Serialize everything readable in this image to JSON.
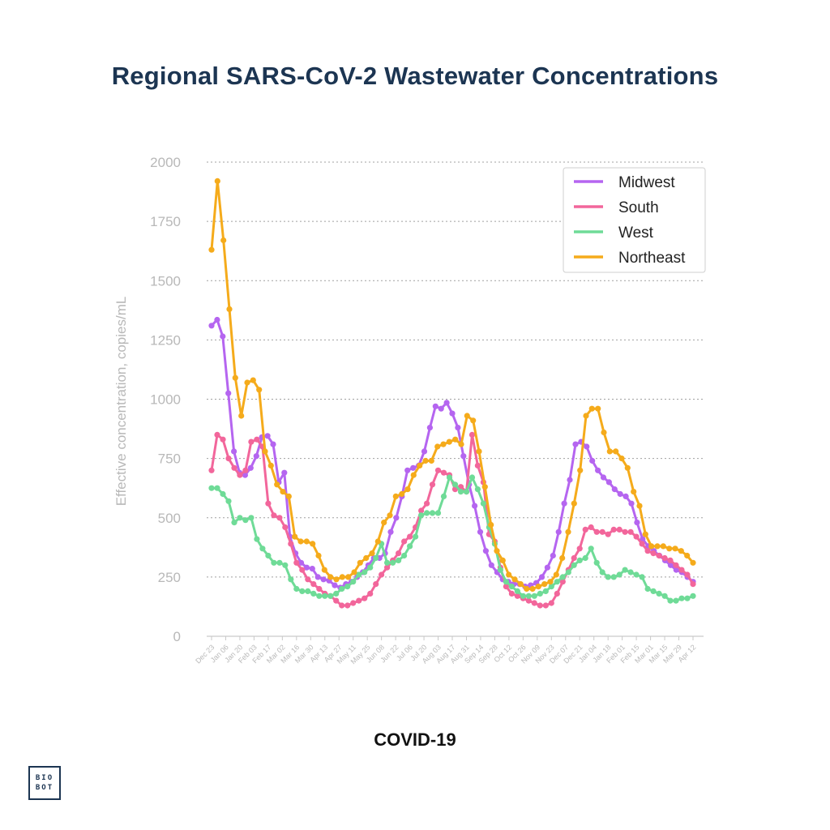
{
  "title": "Regional SARS-CoV-2 Wastewater Concentrations",
  "footer": "COVID-19",
  "logo": {
    "line1": "BIO",
    "line2": "BOT"
  },
  "chart_data": {
    "type": "line",
    "title": "Regional SARS-CoV-2 Wastewater Concentrations",
    "xlabel": "",
    "ylabel": "Effective concentration, copies/mL",
    "ylim": [
      0,
      2000
    ],
    "yticks": [
      0,
      250,
      500,
      750,
      1000,
      1250,
      1500,
      1750,
      2000
    ],
    "grid": "horizontal dotted",
    "legend": "top-right",
    "x_tick_labels": [
      "Dec 23",
      "Jan 06",
      "Jan 20",
      "Feb 03",
      "Feb 17",
      "Mar 02",
      "Mar 16",
      "Mar 30",
      "Apr 13",
      "Apr 27",
      "May 11",
      "May 25",
      "Jun 08",
      "Jun 22",
      "Jul 06",
      "Jul 20",
      "Aug 03",
      "Aug 17",
      "Aug 31",
      "Sep 14",
      "Sep 28",
      "Oct 12",
      "Oct 26",
      "Nov 09",
      "Nov 23",
      "Dec 07",
      "Dec 21",
      "Jan 04",
      "Jan 18",
      "Feb 01",
      "Feb 15",
      "Mar 01",
      "Mar 15",
      "Mar 29",
      "Apr 12"
    ],
    "series": [
      {
        "name": "Midwest",
        "color": "#b565f0",
        "values": [
          1310,
          1335,
          1265,
          1025,
          780,
          690,
          680,
          710,
          760,
          840,
          845,
          810,
          650,
          690,
          420,
          350,
          310,
          290,
          285,
          250,
          240,
          235,
          215,
          205,
          220,
          230,
          250,
          270,
          300,
          330,
          330,
          350,
          440,
          500,
          590,
          700,
          710,
          720,
          780,
          880,
          970,
          960,
          985,
          940,
          880,
          760,
          640,
          550,
          440,
          360,
          300,
          270,
          240,
          230,
          220,
          220,
          210,
          215,
          225,
          250,
          290,
          340,
          440,
          560,
          660,
          810,
          820,
          800,
          740,
          700,
          670,
          650,
          620,
          600,
          590,
          560,
          480,
          410,
          380,
          360,
          340,
          320,
          300,
          280,
          270,
          250,
          230
        ]
      },
      {
        "name": "South",
        "color": "#f2669b",
        "values": [
          700,
          850,
          830,
          750,
          710,
          680,
          700,
          820,
          830,
          800,
          560,
          510,
          500,
          460,
          390,
          310,
          280,
          240,
          220,
          200,
          180,
          170,
          150,
          130,
          130,
          140,
          150,
          160,
          180,
          220,
          260,
          290,
          320,
          350,
          400,
          420,
          460,
          530,
          560,
          640,
          700,
          690,
          680,
          620,
          630,
          610,
          850,
          720,
          650,
          430,
          400,
          290,
          210,
          180,
          170,
          160,
          150,
          140,
          130,
          130,
          140,
          180,
          230,
          280,
          330,
          370,
          450,
          460,
          440,
          440,
          430,
          450,
          450,
          440,
          440,
          420,
          390,
          360,
          350,
          340,
          330,
          320,
          300,
          280,
          260,
          220
        ]
      },
      {
        "name": "West",
        "color": "#6fdb97",
        "values": [
          625,
          625,
          600,
          570,
          480,
          500,
          490,
          500,
          410,
          370,
          340,
          310,
          310,
          300,
          240,
          200,
          190,
          190,
          180,
          170,
          170,
          170,
          180,
          200,
          210,
          230,
          260,
          270,
          290,
          330,
          390,
          310,
          310,
          320,
          340,
          380,
          420,
          510,
          520,
          520,
          520,
          590,
          670,
          640,
          610,
          610,
          670,
          620,
          560,
          460,
          390,
          280,
          230,
          210,
          190,
          170,
          170,
          170,
          180,
          190,
          210,
          230,
          250,
          270,
          300,
          320,
          330,
          370,
          310,
          270,
          250,
          250,
          260,
          280,
          270,
          260,
          250,
          200,
          190,
          180,
          170,
          150,
          150,
          160,
          160,
          170
        ]
      },
      {
        "name": "Northeast",
        "color": "#f5ab1b",
        "values": [
          1630,
          1920,
          1670,
          1380,
          1090,
          930,
          1070,
          1080,
          1040,
          780,
          720,
          640,
          610,
          590,
          420,
          400,
          400,
          390,
          340,
          280,
          250,
          240,
          250,
          250,
          270,
          310,
          330,
          350,
          400,
          480,
          510,
          590,
          600,
          620,
          680,
          720,
          740,
          740,
          800,
          810,
          820,
          830,
          810,
          930,
          910,
          780,
          630,
          470,
          360,
          320,
          260,
          240,
          220,
          200,
          200,
          210,
          220,
          230,
          260,
          330,
          440,
          560,
          700,
          930,
          960,
          960,
          860,
          780,
          780,
          750,
          710,
          610,
          550,
          430,
          380,
          380,
          380,
          370,
          370,
          360,
          340,
          310
        ]
      }
    ]
  }
}
